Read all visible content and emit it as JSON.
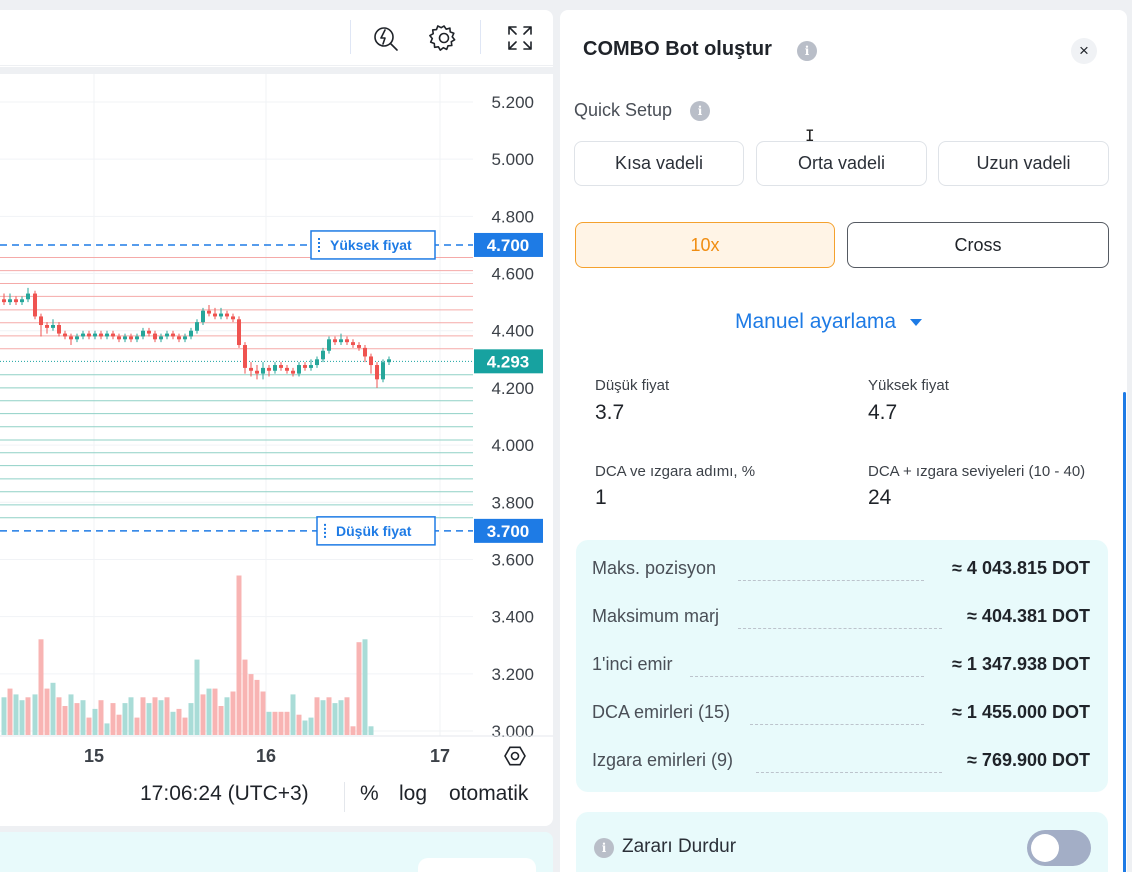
{
  "chart_data": {
    "type": "candlestick",
    "y_ticks": [
      "5.200",
      "5.000",
      "4.800",
      "4.600",
      "4.400",
      "4.200",
      "4.000",
      "3.800",
      "3.600",
      "3.400",
      "3.200",
      "3.000"
    ],
    "x_ticks": [
      {
        "label": "15",
        "x": 94
      },
      {
        "label": "16",
        "x": 266
      },
      {
        "label": "17",
        "x": 440
      }
    ],
    "ylim": [
      3.0,
      5.2
    ],
    "upper_price": {
      "value": 4.7,
      "tag": "Yüksek fiyat",
      "price_label": "4.700"
    },
    "lower_price": {
      "value": 3.7,
      "tag": "Düşük fiyat",
      "price_label": "3.700"
    },
    "current_price": {
      "value": 4.293,
      "price_label": "4.293"
    },
    "grid_levels_sell": [
      4.656,
      4.61,
      4.565,
      4.52,
      4.473,
      4.428,
      4.382,
      4.337
    ],
    "grid_levels_buy": [
      4.246,
      4.2,
      4.155,
      4.11,
      4.064,
      4.018,
      3.973,
      3.928,
      3.882,
      3.837,
      3.791,
      3.746
    ],
    "candles": [
      {
        "x": 4,
        "o": 4.51,
        "c": 4.5,
        "h": 4.53,
        "l": 4.49
      },
      {
        "x": 10,
        "o": 4.5,
        "c": 4.51,
        "h": 4.53,
        "l": 4.49
      },
      {
        "x": 16,
        "o": 4.51,
        "c": 4.5,
        "h": 4.52,
        "l": 4.49
      },
      {
        "x": 22,
        "o": 4.5,
        "c": 4.51,
        "h": 4.52,
        "l": 4.49
      },
      {
        "x": 28,
        "o": 4.51,
        "c": 4.53,
        "h": 4.55,
        "l": 4.5
      },
      {
        "x": 35,
        "o": 4.53,
        "c": 4.45,
        "h": 4.54,
        "l": 4.44
      },
      {
        "x": 41,
        "o": 4.45,
        "c": 4.42,
        "h": 4.46,
        "l": 4.38
      },
      {
        "x": 47,
        "o": 4.42,
        "c": 4.41,
        "h": 4.43,
        "l": 4.39
      },
      {
        "x": 53,
        "o": 4.41,
        "c": 4.42,
        "h": 4.44,
        "l": 4.4
      },
      {
        "x": 59,
        "o": 4.42,
        "c": 4.39,
        "h": 4.43,
        "l": 4.38
      },
      {
        "x": 65,
        "o": 4.39,
        "c": 4.38,
        "h": 4.4,
        "l": 4.37
      },
      {
        "x": 71,
        "o": 4.38,
        "c": 4.37,
        "h": 4.39,
        "l": 4.35
      },
      {
        "x": 77,
        "o": 4.37,
        "c": 4.38,
        "h": 4.39,
        "l": 4.36
      },
      {
        "x": 83,
        "o": 4.38,
        "c": 4.39,
        "h": 4.4,
        "l": 4.37
      },
      {
        "x": 89,
        "o": 4.39,
        "c": 4.38,
        "h": 4.4,
        "l": 4.37
      },
      {
        "x": 95,
        "o": 4.38,
        "c": 4.39,
        "h": 4.4,
        "l": 4.37
      },
      {
        "x": 101,
        "o": 4.39,
        "c": 4.38,
        "h": 4.4,
        "l": 4.37
      },
      {
        "x": 107,
        "o": 4.38,
        "c": 4.39,
        "h": 4.4,
        "l": 4.37
      },
      {
        "x": 113,
        "o": 4.39,
        "c": 4.38,
        "h": 4.4,
        "l": 4.37
      },
      {
        "x": 119,
        "o": 4.38,
        "c": 4.37,
        "h": 4.39,
        "l": 4.36
      },
      {
        "x": 125,
        "o": 4.37,
        "c": 4.38,
        "h": 4.39,
        "l": 4.36
      },
      {
        "x": 131,
        "o": 4.38,
        "c": 4.37,
        "h": 4.39,
        "l": 4.36
      },
      {
        "x": 137,
        "o": 4.37,
        "c": 4.38,
        "h": 4.39,
        "l": 4.36
      },
      {
        "x": 143,
        "o": 4.38,
        "c": 4.4,
        "h": 4.41,
        "l": 4.37
      },
      {
        "x": 149,
        "o": 4.4,
        "c": 4.39,
        "h": 4.41,
        "l": 4.38
      },
      {
        "x": 155,
        "o": 4.39,
        "c": 4.37,
        "h": 4.4,
        "l": 4.36
      },
      {
        "x": 161,
        "o": 4.37,
        "c": 4.38,
        "h": 4.39,
        "l": 4.36
      },
      {
        "x": 167,
        "o": 4.38,
        "c": 4.39,
        "h": 4.4,
        "l": 4.37
      },
      {
        "x": 173,
        "o": 4.39,
        "c": 4.38,
        "h": 4.4,
        "l": 4.37
      },
      {
        "x": 179,
        "o": 4.38,
        "c": 4.37,
        "h": 4.39,
        "l": 4.36
      },
      {
        "x": 185,
        "o": 4.37,
        "c": 4.38,
        "h": 4.39,
        "l": 4.36
      },
      {
        "x": 191,
        "o": 4.38,
        "c": 4.4,
        "h": 4.41,
        "l": 4.37
      },
      {
        "x": 197,
        "o": 4.4,
        "c": 4.43,
        "h": 4.44,
        "l": 4.39
      },
      {
        "x": 203,
        "o": 4.43,
        "c": 4.47,
        "h": 4.48,
        "l": 4.42
      },
      {
        "x": 209,
        "o": 4.47,
        "c": 4.46,
        "h": 4.49,
        "l": 4.45
      },
      {
        "x": 215,
        "o": 4.46,
        "c": 4.45,
        "h": 4.48,
        "l": 4.44
      },
      {
        "x": 221,
        "o": 4.45,
        "c": 4.46,
        "h": 4.48,
        "l": 4.44
      },
      {
        "x": 227,
        "o": 4.46,
        "c": 4.45,
        "h": 4.47,
        "l": 4.44
      },
      {
        "x": 233,
        "o": 4.45,
        "c": 4.44,
        "h": 4.46,
        "l": 4.43
      },
      {
        "x": 239,
        "o": 4.44,
        "c": 4.35,
        "h": 4.45,
        "l": 4.34
      },
      {
        "x": 245,
        "o": 4.35,
        "c": 4.27,
        "h": 4.36,
        "l": 4.25
      },
      {
        "x": 251,
        "o": 4.27,
        "c": 4.26,
        "h": 4.29,
        "l": 4.24
      },
      {
        "x": 257,
        "o": 4.26,
        "c": 4.25,
        "h": 4.28,
        "l": 4.23
      },
      {
        "x": 263,
        "o": 4.25,
        "c": 4.27,
        "h": 4.29,
        "l": 4.23
      },
      {
        "x": 269,
        "o": 4.27,
        "c": 4.26,
        "h": 4.28,
        "l": 4.24
      },
      {
        "x": 275,
        "o": 4.26,
        "c": 4.28,
        "h": 4.29,
        "l": 4.25
      },
      {
        "x": 281,
        "o": 4.28,
        "c": 4.27,
        "h": 4.29,
        "l": 4.26
      },
      {
        "x": 287,
        "o": 4.27,
        "c": 4.26,
        "h": 4.28,
        "l": 4.25
      },
      {
        "x": 293,
        "o": 4.26,
        "c": 4.25,
        "h": 4.27,
        "l": 4.24
      },
      {
        "x": 299,
        "o": 4.25,
        "c": 4.28,
        "h": 4.29,
        "l": 4.24
      },
      {
        "x": 305,
        "o": 4.28,
        "c": 4.27,
        "h": 4.29,
        "l": 4.26
      },
      {
        "x": 311,
        "o": 4.27,
        "c": 4.28,
        "h": 4.3,
        "l": 4.26
      },
      {
        "x": 317,
        "o": 4.28,
        "c": 4.3,
        "h": 4.31,
        "l": 4.27
      },
      {
        "x": 323,
        "o": 4.3,
        "c": 4.33,
        "h": 4.34,
        "l": 4.29
      },
      {
        "x": 329,
        "o": 4.33,
        "c": 4.37,
        "h": 4.38,
        "l": 4.32
      },
      {
        "x": 335,
        "o": 4.37,
        "c": 4.36,
        "h": 4.38,
        "l": 4.35
      },
      {
        "x": 341,
        "o": 4.36,
        "c": 4.37,
        "h": 4.39,
        "l": 4.35
      },
      {
        "x": 347,
        "o": 4.37,
        "c": 4.36,
        "h": 4.38,
        "l": 4.35
      },
      {
        "x": 353,
        "o": 4.36,
        "c": 4.35,
        "h": 4.37,
        "l": 4.34
      },
      {
        "x": 359,
        "o": 4.35,
        "c": 4.34,
        "h": 4.36,
        "l": 4.33
      },
      {
        "x": 365,
        "o": 4.34,
        "c": 4.31,
        "h": 4.35,
        "l": 4.29
      },
      {
        "x": 371,
        "o": 4.31,
        "c": 4.28,
        "h": 4.32,
        "l": 4.25
      },
      {
        "x": 377,
        "o": 4.28,
        "c": 4.23,
        "h": 4.29,
        "l": 4.2
      },
      {
        "x": 383,
        "o": 4.23,
        "c": 4.29,
        "h": 4.3,
        "l": 4.22
      },
      {
        "x": 389,
        "o": 4.29,
        "c": 4.3,
        "h": 4.31,
        "l": 4.28
      }
    ],
    "volume": [
      {
        "x": 4,
        "v": 0.13,
        "up": true
      },
      {
        "x": 10,
        "v": 0.16,
        "up": false
      },
      {
        "x": 16,
        "v": 0.14,
        "up": true
      },
      {
        "x": 22,
        "v": 0.12,
        "up": true
      },
      {
        "x": 28,
        "v": 0.13,
        "up": false
      },
      {
        "x": 35,
        "v": 0.14,
        "up": true
      },
      {
        "x": 41,
        "v": 0.33,
        "up": false
      },
      {
        "x": 47,
        "v": 0.16,
        "up": false
      },
      {
        "x": 53,
        "v": 0.18,
        "up": true
      },
      {
        "x": 59,
        "v": 0.13,
        "up": false
      },
      {
        "x": 65,
        "v": 0.1,
        "up": false
      },
      {
        "x": 71,
        "v": 0.14,
        "up": true
      },
      {
        "x": 77,
        "v": 0.11,
        "up": false
      },
      {
        "x": 83,
        "v": 0.12,
        "up": true
      },
      {
        "x": 89,
        "v": 0.06,
        "up": false
      },
      {
        "x": 95,
        "v": 0.09,
        "up": true
      },
      {
        "x": 101,
        "v": 0.12,
        "up": false
      },
      {
        "x": 107,
        "v": 0.04,
        "up": true
      },
      {
        "x": 113,
        "v": 0.11,
        "up": false
      },
      {
        "x": 119,
        "v": 0.07,
        "up": false
      },
      {
        "x": 125,
        "v": 0.11,
        "up": true
      },
      {
        "x": 131,
        "v": 0.13,
        "up": true
      },
      {
        "x": 137,
        "v": 0.06,
        "up": false
      },
      {
        "x": 143,
        "v": 0.13,
        "up": false
      },
      {
        "x": 149,
        "v": 0.11,
        "up": true
      },
      {
        "x": 155,
        "v": 0.13,
        "up": false
      },
      {
        "x": 161,
        "v": 0.12,
        "up": true
      },
      {
        "x": 167,
        "v": 0.13,
        "up": false
      },
      {
        "x": 173,
        "v": 0.08,
        "up": true
      },
      {
        "x": 179,
        "v": 0.09,
        "up": false
      },
      {
        "x": 185,
        "v": 0.06,
        "up": false
      },
      {
        "x": 191,
        "v": 0.11,
        "up": true
      },
      {
        "x": 197,
        "v": 0.26,
        "up": true
      },
      {
        "x": 203,
        "v": 0.14,
        "up": false
      },
      {
        "x": 209,
        "v": 0.16,
        "up": true
      },
      {
        "x": 215,
        "v": 0.16,
        "up": false
      },
      {
        "x": 221,
        "v": 0.1,
        "up": false
      },
      {
        "x": 227,
        "v": 0.13,
        "up": true
      },
      {
        "x": 233,
        "v": 0.15,
        "up": false
      },
      {
        "x": 239,
        "v": 0.55,
        "up": false
      },
      {
        "x": 245,
        "v": 0.26,
        "up": false
      },
      {
        "x": 251,
        "v": 0.21,
        "up": false
      },
      {
        "x": 257,
        "v": 0.19,
        "up": false
      },
      {
        "x": 263,
        "v": 0.15,
        "up": false
      },
      {
        "x": 269,
        "v": 0.08,
        "up": true
      },
      {
        "x": 275,
        "v": 0.08,
        "up": false
      },
      {
        "x": 281,
        "v": 0.08,
        "up": false
      },
      {
        "x": 287,
        "v": 0.08,
        "up": false
      },
      {
        "x": 293,
        "v": 0.14,
        "up": true
      },
      {
        "x": 299,
        "v": 0.07,
        "up": false
      },
      {
        "x": 305,
        "v": 0.05,
        "up": true
      },
      {
        "x": 311,
        "v": 0.06,
        "up": true
      },
      {
        "x": 317,
        "v": 0.13,
        "up": false
      },
      {
        "x": 323,
        "v": 0.12,
        "up": true
      },
      {
        "x": 329,
        "v": 0.13,
        "up": false
      },
      {
        "x": 335,
        "v": 0.11,
        "up": true
      },
      {
        "x": 341,
        "v": 0.12,
        "up": true
      },
      {
        "x": 347,
        "v": 0.13,
        "up": false
      },
      {
        "x": 353,
        "v": 0.03,
        "up": false
      },
      {
        "x": 359,
        "v": 0.32,
        "up": false
      },
      {
        "x": 365,
        "v": 0.33,
        "up": true
      },
      {
        "x": 371,
        "v": 0.03,
        "up": true
      }
    ],
    "colors": {
      "up": "#26a69a",
      "down": "#ef5350",
      "up_vol": "#a9dcd7",
      "down_vol": "#f8b4b3",
      "sell_grid": "#f5aaa8",
      "buy_grid": "#8fd1c6",
      "limit": "#1e7be5",
      "current": "#17a2a0"
    }
  },
  "footer": {
    "time": "17:06:24 (UTC+3)",
    "percent": "%",
    "log": "log",
    "auto": "otomatik"
  },
  "toolbar": {
    "icons": [
      "indicator-icon",
      "gear-icon",
      "fullscreen-icon"
    ]
  },
  "panel": {
    "title": "COMBO Bot oluştur",
    "info_glyph": "i",
    "close_glyph": "×",
    "quick_setup": "Quick Setup",
    "presets": [
      "Kısa vadeli",
      "Orta vadeli",
      "Uzun vadeli"
    ],
    "leverage": "10x",
    "margin_mode": "Cross",
    "manual": "Manuel ayarlama",
    "fields": {
      "low_label": "Düşük fiyat",
      "low_value": "3.7",
      "high_label": "Yüksek fiyat",
      "high_value": "4.7",
      "step_label": "DCA ve ızgara adımı, %",
      "step_value": "1",
      "levels_label": "DCA + ızgara seviyeleri (10 - 40)",
      "levels_value": "24"
    },
    "summary": [
      {
        "label": "Maks. pozisyon",
        "value": "≈ 4 043.815 DOT"
      },
      {
        "label": "Maksimum marj",
        "value": "≈ 404.381 DOT"
      },
      {
        "label": "1'inci emir",
        "value": "≈ 1 347.938 DOT"
      },
      {
        "label": "DCA emirleri (15)",
        "value": "≈ 1 455.000 DOT"
      },
      {
        "label": "Izgara emirleri (9)",
        "value": "≈ 769.900 DOT"
      }
    ],
    "stop_loss": "Zararı Durdur",
    "stop_loss_on": false
  },
  "colors": {
    "accent": "#1e7be5",
    "leverage": "#f08d12"
  }
}
